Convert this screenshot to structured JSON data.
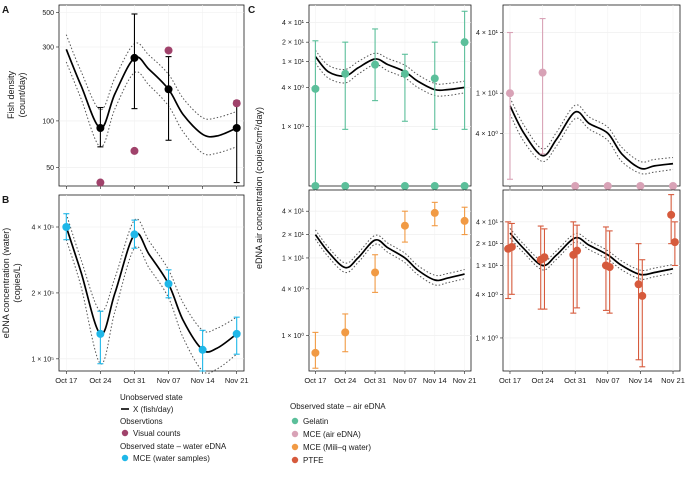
{
  "shared": {
    "x_ticks": [
      "Oct 17",
      "Oct 24",
      "Oct 31",
      "Nov 07",
      "Nov 14",
      "Nov 21"
    ],
    "x_range_days": [
      -1.5,
      36.5
    ]
  },
  "panel_letters": {
    "a": "A",
    "b": "B",
    "c": "C"
  },
  "legend": {
    "unobserved": {
      "title": "Unobserved state",
      "item": "X (fish/day)"
    },
    "observations": {
      "title": "Observtions",
      "item": "Visual counts",
      "color": "#a0426b"
    },
    "water": {
      "title": "Observed state – water eDNA",
      "item": "MCE (water samples)",
      "color": "#1fb7e8"
    },
    "air": {
      "title": "Observed state – air eDNA",
      "items": [
        {
          "label": "Gelatin",
          "color": "#5bbf9a"
        },
        {
          "label": "MCE (air eDNA)",
          "color": "#d8a2b6"
        },
        {
          "label": "MCE (Mili–q water)",
          "color": "#f19a44"
        },
        {
          "label": "PTFE",
          "color": "#d65a3c"
        }
      ]
    }
  },
  "chart_data": [
    {
      "id": "A",
      "type": "line",
      "ylabel_lines": [
        "Fish density",
        "(count/day)"
      ],
      "yscale": "log",
      "ylim": [
        38,
        560
      ],
      "y_ticks": [
        {
          "v": 50,
          "label": "50"
        },
        {
          "v": 100,
          "label": "100"
        },
        {
          "v": 300,
          "label": "300"
        },
        {
          "v": 500,
          "label": "500"
        }
      ],
      "line": {
        "x": [
          0,
          3,
          7,
          10,
          14,
          17,
          21,
          24,
          28,
          31,
          35
        ],
        "y": [
          290,
          170,
          90,
          150,
          255,
          215,
          160,
          110,
          82,
          80,
          90
        ]
      },
      "band_lower": {
        "x": [
          0,
          3,
          7,
          10,
          14,
          17,
          21,
          24,
          28,
          31,
          35
        ],
        "y": [
          240,
          140,
          68,
          120,
          205,
          170,
          125,
          85,
          62,
          62,
          68
        ]
      },
      "band_upper": {
        "x": [
          0,
          3,
          7,
          10,
          14,
          17,
          21,
          24,
          28,
          31,
          35
        ],
        "y": [
          360,
          210,
          118,
          190,
          315,
          265,
          200,
          140,
          105,
          105,
          115
        ]
      },
      "series": [
        {
          "name": "X (fish/day)",
          "color": "#000000",
          "points": [
            {
              "x": 7,
              "y": 90,
              "lo": 68,
              "hi": 122
            },
            {
              "x": 14,
              "y": 255,
              "lo": 120,
              "hi": 490
            },
            {
              "x": 21,
              "y": 160,
              "lo": 75,
              "hi": 260
            },
            {
              "x": 35,
              "y": 90,
              "lo": 40,
              "hi": 135
            }
          ]
        },
        {
          "name": "Visual counts",
          "color": "#a0426b",
          "points": [
            {
              "x": 7,
              "y": 40
            },
            {
              "x": 14,
              "y": 64
            },
            {
              "x": 21,
              "y": 285
            },
            {
              "x": 35,
              "y": 130
            }
          ]
        }
      ]
    },
    {
      "id": "B",
      "type": "line",
      "ylabel_lines": [
        "eDNA concentration (water)",
        "(copies/L)"
      ],
      "yscale": "log",
      "ylim": [
        88000,
        560000
      ],
      "y_ticks": [
        {
          "v": 100000,
          "label": "1 × 10⁵"
        },
        {
          "v": 200000,
          "label": "2 × 10⁵"
        },
        {
          "v": 400000,
          "label": "4 × 10⁵"
        }
      ],
      "line": {
        "x": [
          0,
          3,
          7,
          10,
          14,
          17,
          21,
          24,
          28,
          31,
          35
        ],
        "y": [
          400000,
          250000,
          130000,
          200000,
          370000,
          300000,
          220000,
          150000,
          110000,
          112000,
          130000
        ]
      },
      "band_lower": {
        "x": [
          0,
          3,
          7,
          10,
          14,
          17,
          21,
          24,
          28,
          31,
          35
        ],
        "y": [
          350000,
          215000,
          95000,
          165000,
          320000,
          260000,
          190000,
          125000,
          82000,
          90000,
          105000
        ]
      },
      "band_upper": {
        "x": [
          0,
          3,
          7,
          10,
          14,
          17,
          21,
          24,
          28,
          31,
          35
        ],
        "y": [
          460000,
          285000,
          165000,
          235000,
          430000,
          345000,
          255000,
          180000,
          135000,
          138000,
          155000
        ]
      },
      "series": [
        {
          "name": "MCE (water samples)",
          "color": "#1fb7e8",
          "points": [
            {
              "x": 0,
              "y": 400000,
              "lo": 350000,
              "hi": 460000
            },
            {
              "x": 7,
              "y": 130000,
              "lo": 95000,
              "hi": 165000
            },
            {
              "x": 14,
              "y": 370000,
              "lo": 320000,
              "hi": 430000
            },
            {
              "x": 21,
              "y": 220000,
              "lo": 190000,
              "hi": 255000
            },
            {
              "x": 28,
              "y": 110000,
              "lo": 85000,
              "hi": 135000
            },
            {
              "x": 35,
              "y": 130000,
              "lo": 105000,
              "hi": 155000
            }
          ]
        }
      ]
    },
    {
      "id": "C-gelatin",
      "type": "line",
      "ylabel": "",
      "yscale": "log",
      "ylim": [
        0.12,
        75
      ],
      "y_ticks": [
        {
          "v": 1,
          "label": "1 × 10⁰"
        },
        {
          "v": 4,
          "label": "4 × 10⁰"
        },
        {
          "v": 10,
          "label": "1 × 10¹"
        },
        {
          "v": 20,
          "label": "2 × 10¹"
        },
        {
          "v": 40,
          "label": "4 × 10¹"
        }
      ],
      "line": {
        "x": [
          0,
          3,
          7,
          10,
          14,
          17,
          21,
          24,
          28,
          31,
          35
        ],
        "y": [
          12,
          7,
          6,
          8,
          11,
          9,
          7,
          5,
          3.7,
          3.7,
          4
        ]
      },
      "band_lower": {
        "x": [
          0,
          3,
          7,
          10,
          14,
          17,
          21,
          24,
          28,
          31,
          35
        ],
        "y": [
          9.5,
          5.6,
          4.7,
          6.4,
          9,
          7.2,
          5.6,
          4,
          3,
          3,
          3.3
        ]
      },
      "band_upper": {
        "x": [
          0,
          3,
          7,
          10,
          14,
          17,
          21,
          24,
          28,
          31,
          35
        ],
        "y": [
          15,
          8.8,
          7.6,
          10,
          13.5,
          11.2,
          8.8,
          6.3,
          4.6,
          4.6,
          5
        ]
      },
      "series": [
        {
          "name": "Gelatin",
          "color": "#5bbf9a",
          "points": [
            {
              "x": 0,
              "y": 3.8,
              "lo": 0.13,
              "hi": 21
            },
            {
              "x": 0,
              "y": 0.12
            },
            {
              "x": 7,
              "y": 6.5,
              "lo": 0.9,
              "hi": 20
            },
            {
              "x": 7,
              "y": 0.12
            },
            {
              "x": 14,
              "y": 9,
              "lo": 2.5,
              "hi": 32
            },
            {
              "x": 21,
              "y": 6.5,
              "lo": 1.2,
              "hi": 13
            },
            {
              "x": 21,
              "y": 0.12
            },
            {
              "x": 28,
              "y": 5.5,
              "lo": 0.9,
              "hi": 20
            },
            {
              "x": 28,
              "y": 0.12
            },
            {
              "x": 35,
              "y": 20,
              "lo": 0.9,
              "hi": 60
            },
            {
              "x": 35,
              "y": 0.12
            }
          ]
        }
      ]
    },
    {
      "id": "C-mce-air",
      "type": "line",
      "ylabel": "",
      "yscale": "log",
      "ylim": [
        1.2,
        75
      ],
      "y_ticks": [
        {
          "v": 4,
          "label": "4 × 10⁰"
        },
        {
          "v": 10,
          "label": "1 × 10¹"
        },
        {
          "v": 40,
          "label": "4 × 10¹"
        }
      ],
      "line": {
        "x": [
          0,
          3,
          7,
          10,
          14,
          17,
          21,
          24,
          28,
          31,
          35
        ],
        "y": [
          7.5,
          4,
          2.4,
          3.5,
          6.5,
          5,
          4,
          2.5,
          1.8,
          1.9,
          2
        ]
      },
      "band_lower": {
        "x": [
          0,
          3,
          7,
          10,
          14,
          17,
          21,
          24,
          28,
          31,
          35
        ],
        "y": [
          6.2,
          3.3,
          2.1,
          3,
          5.6,
          4.4,
          3.4,
          2.1,
          1.6,
          1.65,
          1.75
        ]
      },
      "band_upper": {
        "x": [
          0,
          3,
          7,
          10,
          14,
          17,
          21,
          24,
          28,
          31,
          35
        ],
        "y": [
          9,
          4.8,
          2.8,
          4.1,
          7.6,
          5.8,
          4.6,
          2.9,
          2.1,
          2.2,
          2.3
        ]
      },
      "series": [
        {
          "name": "MCE (air eDNA)",
          "color": "#d8a2b6",
          "points": [
            {
              "x": 0,
              "y": 10,
              "lo": 1.4,
              "hi": 40
            },
            {
              "x": 7,
              "y": 16,
              "lo": 2.5,
              "hi": 55
            },
            {
              "x": 14,
              "y": 1.2
            },
            {
              "x": 21,
              "y": 1.2
            },
            {
              "x": 28,
              "y": 1.2
            },
            {
              "x": 35,
              "y": 1.2
            }
          ]
        }
      ]
    },
    {
      "id": "C-mce-water",
      "type": "line",
      "ylabel": "",
      "yscale": "log",
      "ylim": [
        0.35,
        75
      ],
      "y_ticks": [
        {
          "v": 1,
          "label": "1 × 10⁰"
        },
        {
          "v": 4,
          "label": "4 × 10⁰"
        },
        {
          "v": 10,
          "label": "1 × 10¹"
        },
        {
          "v": 20,
          "label": "2 × 10¹"
        },
        {
          "v": 40,
          "label": "4 × 10¹"
        }
      ],
      "line": {
        "x": [
          0,
          3,
          7,
          10,
          14,
          17,
          21,
          24,
          28,
          31,
          35
        ],
        "y": [
          20,
          12,
          7.5,
          10,
          17,
          13.5,
          10,
          7,
          5.2,
          5.5,
          6.2
        ]
      },
      "band_lower": {
        "x": [
          0,
          3,
          7,
          10,
          14,
          17,
          21,
          24,
          28,
          31,
          35
        ],
        "y": [
          17.5,
          10.4,
          6.5,
          8.7,
          15,
          11.8,
          8.7,
          6.1,
          4.5,
          4.8,
          5.4
        ]
      },
      "band_upper": {
        "x": [
          0,
          3,
          7,
          10,
          14,
          17,
          21,
          24,
          28,
          31,
          35
        ],
        "y": [
          23,
          13.8,
          8.6,
          11.5,
          19.5,
          15.5,
          11.5,
          8,
          6,
          6.3,
          7.1
        ]
      },
      "series": [
        {
          "name": "MCE (Mili–q water)",
          "color": "#f19a44",
          "points": [
            {
              "x": 0,
              "y": 0.6,
              "lo": 0.38,
              "hi": 1.1
            },
            {
              "x": 7,
              "y": 1.1,
              "lo": 0.62,
              "hi": 1.9
            },
            {
              "x": 14,
              "y": 6.5,
              "lo": 3.6,
              "hi": 11
            },
            {
              "x": 21,
              "y": 26,
              "lo": 16,
              "hi": 40
            },
            {
              "x": 28,
              "y": 38,
              "lo": 26,
              "hi": 52
            },
            {
              "x": 35,
              "y": 30,
              "lo": 20,
              "hi": 45
            }
          ]
        }
      ]
    },
    {
      "id": "C-ptfe",
      "type": "line",
      "ylabel": "",
      "yscale": "log",
      "ylim": [
        0.35,
        110
      ],
      "y_ticks": [
        {
          "v": 1,
          "label": "1 × 10⁰"
        },
        {
          "v": 4,
          "label": "4 × 10⁰"
        },
        {
          "v": 10,
          "label": "1 × 10¹"
        },
        {
          "v": 20,
          "label": "2 × 10¹"
        },
        {
          "v": 40,
          "label": "4 × 10¹"
        }
      ],
      "line": {
        "x": [
          0,
          3,
          7,
          10,
          14,
          17,
          21,
          24,
          28,
          31,
          35
        ],
        "y": [
          28,
          17,
          10,
          14,
          24,
          19,
          14,
          10,
          7.5,
          8,
          9
        ]
      },
      "band_lower": {
        "x": [
          0,
          3,
          7,
          10,
          14,
          17,
          21,
          24,
          28,
          31,
          35
        ],
        "y": [
          24,
          14.8,
          8.7,
          12.2,
          21,
          16.5,
          12.2,
          8.7,
          6.5,
          7,
          7.8
        ]
      },
      "band_upper": {
        "x": [
          0,
          3,
          7,
          10,
          14,
          17,
          21,
          24,
          28,
          31,
          35
        ],
        "y": [
          32.5,
          19.5,
          11.5,
          16,
          27.5,
          21.8,
          16,
          11.5,
          8.6,
          9.2,
          10.3
        ]
      },
      "series": [
        {
          "name": "PTFE",
          "color": "#d65a3c",
          "points": [
            {
              "x": -0.4,
              "y": 17,
              "lo": 3.5,
              "hi": 40
            },
            {
              "x": 0.4,
              "y": 18,
              "lo": 4,
              "hi": 38
            },
            {
              "x": 6.6,
              "y": 12,
              "lo": 2.5,
              "hi": 35
            },
            {
              "x": 7.4,
              "y": 13,
              "lo": 2.5,
              "hi": 32
            },
            {
              "x": 13.6,
              "y": 14,
              "lo": 2.2,
              "hi": 40
            },
            {
              "x": 14.4,
              "y": 16,
              "lo": 2.6,
              "hi": 36
            },
            {
              "x": 20.6,
              "y": 10,
              "lo": 2.4,
              "hi": 34
            },
            {
              "x": 21.4,
              "y": 9.5,
              "lo": 2.2,
              "hi": 30
            },
            {
              "x": 27.6,
              "y": 5.5,
              "lo": 0.5,
              "hi": 20
            },
            {
              "x": 28.4,
              "y": 3.8,
              "lo": 0.4,
              "hi": 12
            },
            {
              "x": 34.6,
              "y": 50,
              "lo": 20,
              "hi": 95
            },
            {
              "x": 35.4,
              "y": 21,
              "lo": 10,
              "hi": 40
            }
          ]
        }
      ]
    }
  ],
  "panel_c_ylabel": [
    "eDNA air concentration (copies/cm",
    "2",
    "/day)"
  ]
}
